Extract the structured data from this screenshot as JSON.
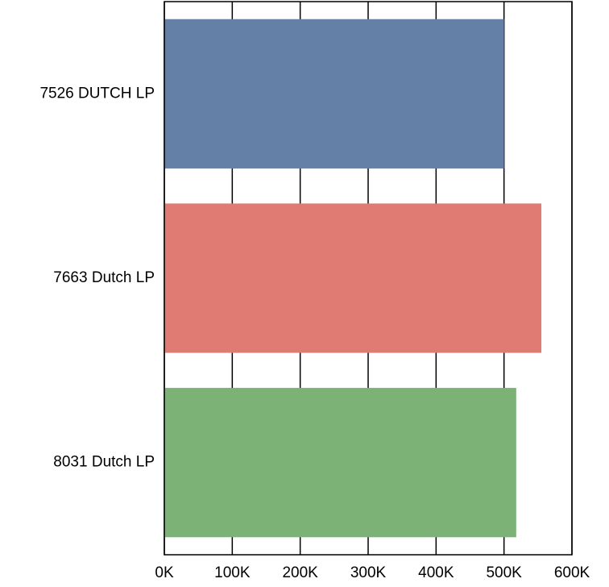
{
  "chart_data": {
    "type": "bar",
    "orientation": "horizontal",
    "title": "",
    "xlabel": "",
    "ylabel": "",
    "categories": [
      "7526 DUTCH LP",
      "7663 Dutch LP",
      "8031 Dutch LP"
    ],
    "values": [
      500000,
      555000,
      518000
    ],
    "colors": [
      "#6480a6",
      "#e07b74",
      "#7db277"
    ],
    "xlim": [
      0,
      600000
    ],
    "xticks": [
      0,
      100000,
      200000,
      300000,
      400000,
      500000,
      600000
    ],
    "xtick_labels": [
      "0K",
      "100K",
      "200K",
      "300K",
      "400K",
      "500K",
      "600K"
    ],
    "grid": "vertical",
    "legend": "none"
  }
}
